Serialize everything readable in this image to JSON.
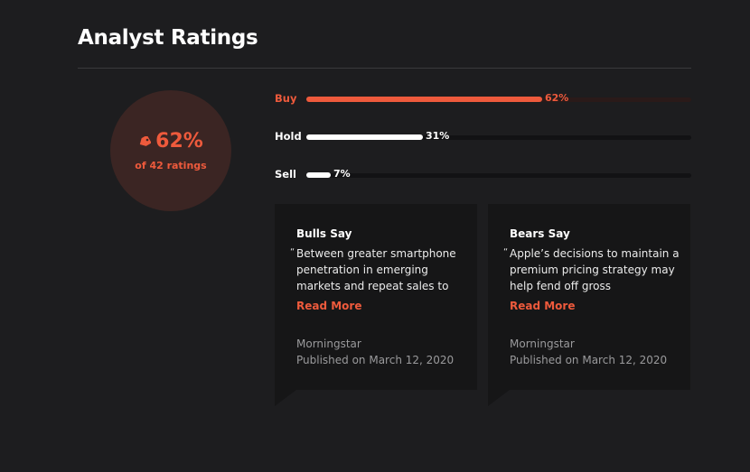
{
  "header": {
    "title": "Analyst Ratings"
  },
  "summary": {
    "percent": "62%",
    "subtitle": "of 42 ratings",
    "icon": "tag-icon",
    "accent": "#ee5a3c"
  },
  "ratings": [
    {
      "label": "Buy",
      "percent_text": "62%",
      "value": 62,
      "color": "#ee5a3c",
      "track": "#2a1a19"
    },
    {
      "label": "Hold",
      "percent_text": "31%",
      "value": 31,
      "color": "#ffffff",
      "track": "#121214"
    },
    {
      "label": "Sell",
      "percent_text": "7%",
      "value": 7,
      "color": "#ffffff",
      "track": "#121214"
    }
  ],
  "cards": {
    "bulls": {
      "title": "Bulls Say",
      "quote": "Between greater smartphone penetration in emerging markets and repeat sales to",
      "read_more": "Read More",
      "source": "Morningstar",
      "date": "Published on March 12, 2020"
    },
    "bears": {
      "title": "Bears Say",
      "quote": "Apple’s decisions to maintain a premium pricing strategy may help fend off gross",
      "read_more": "Read More",
      "source": "Morningstar",
      "date": "Published on March 12, 2020"
    }
  }
}
